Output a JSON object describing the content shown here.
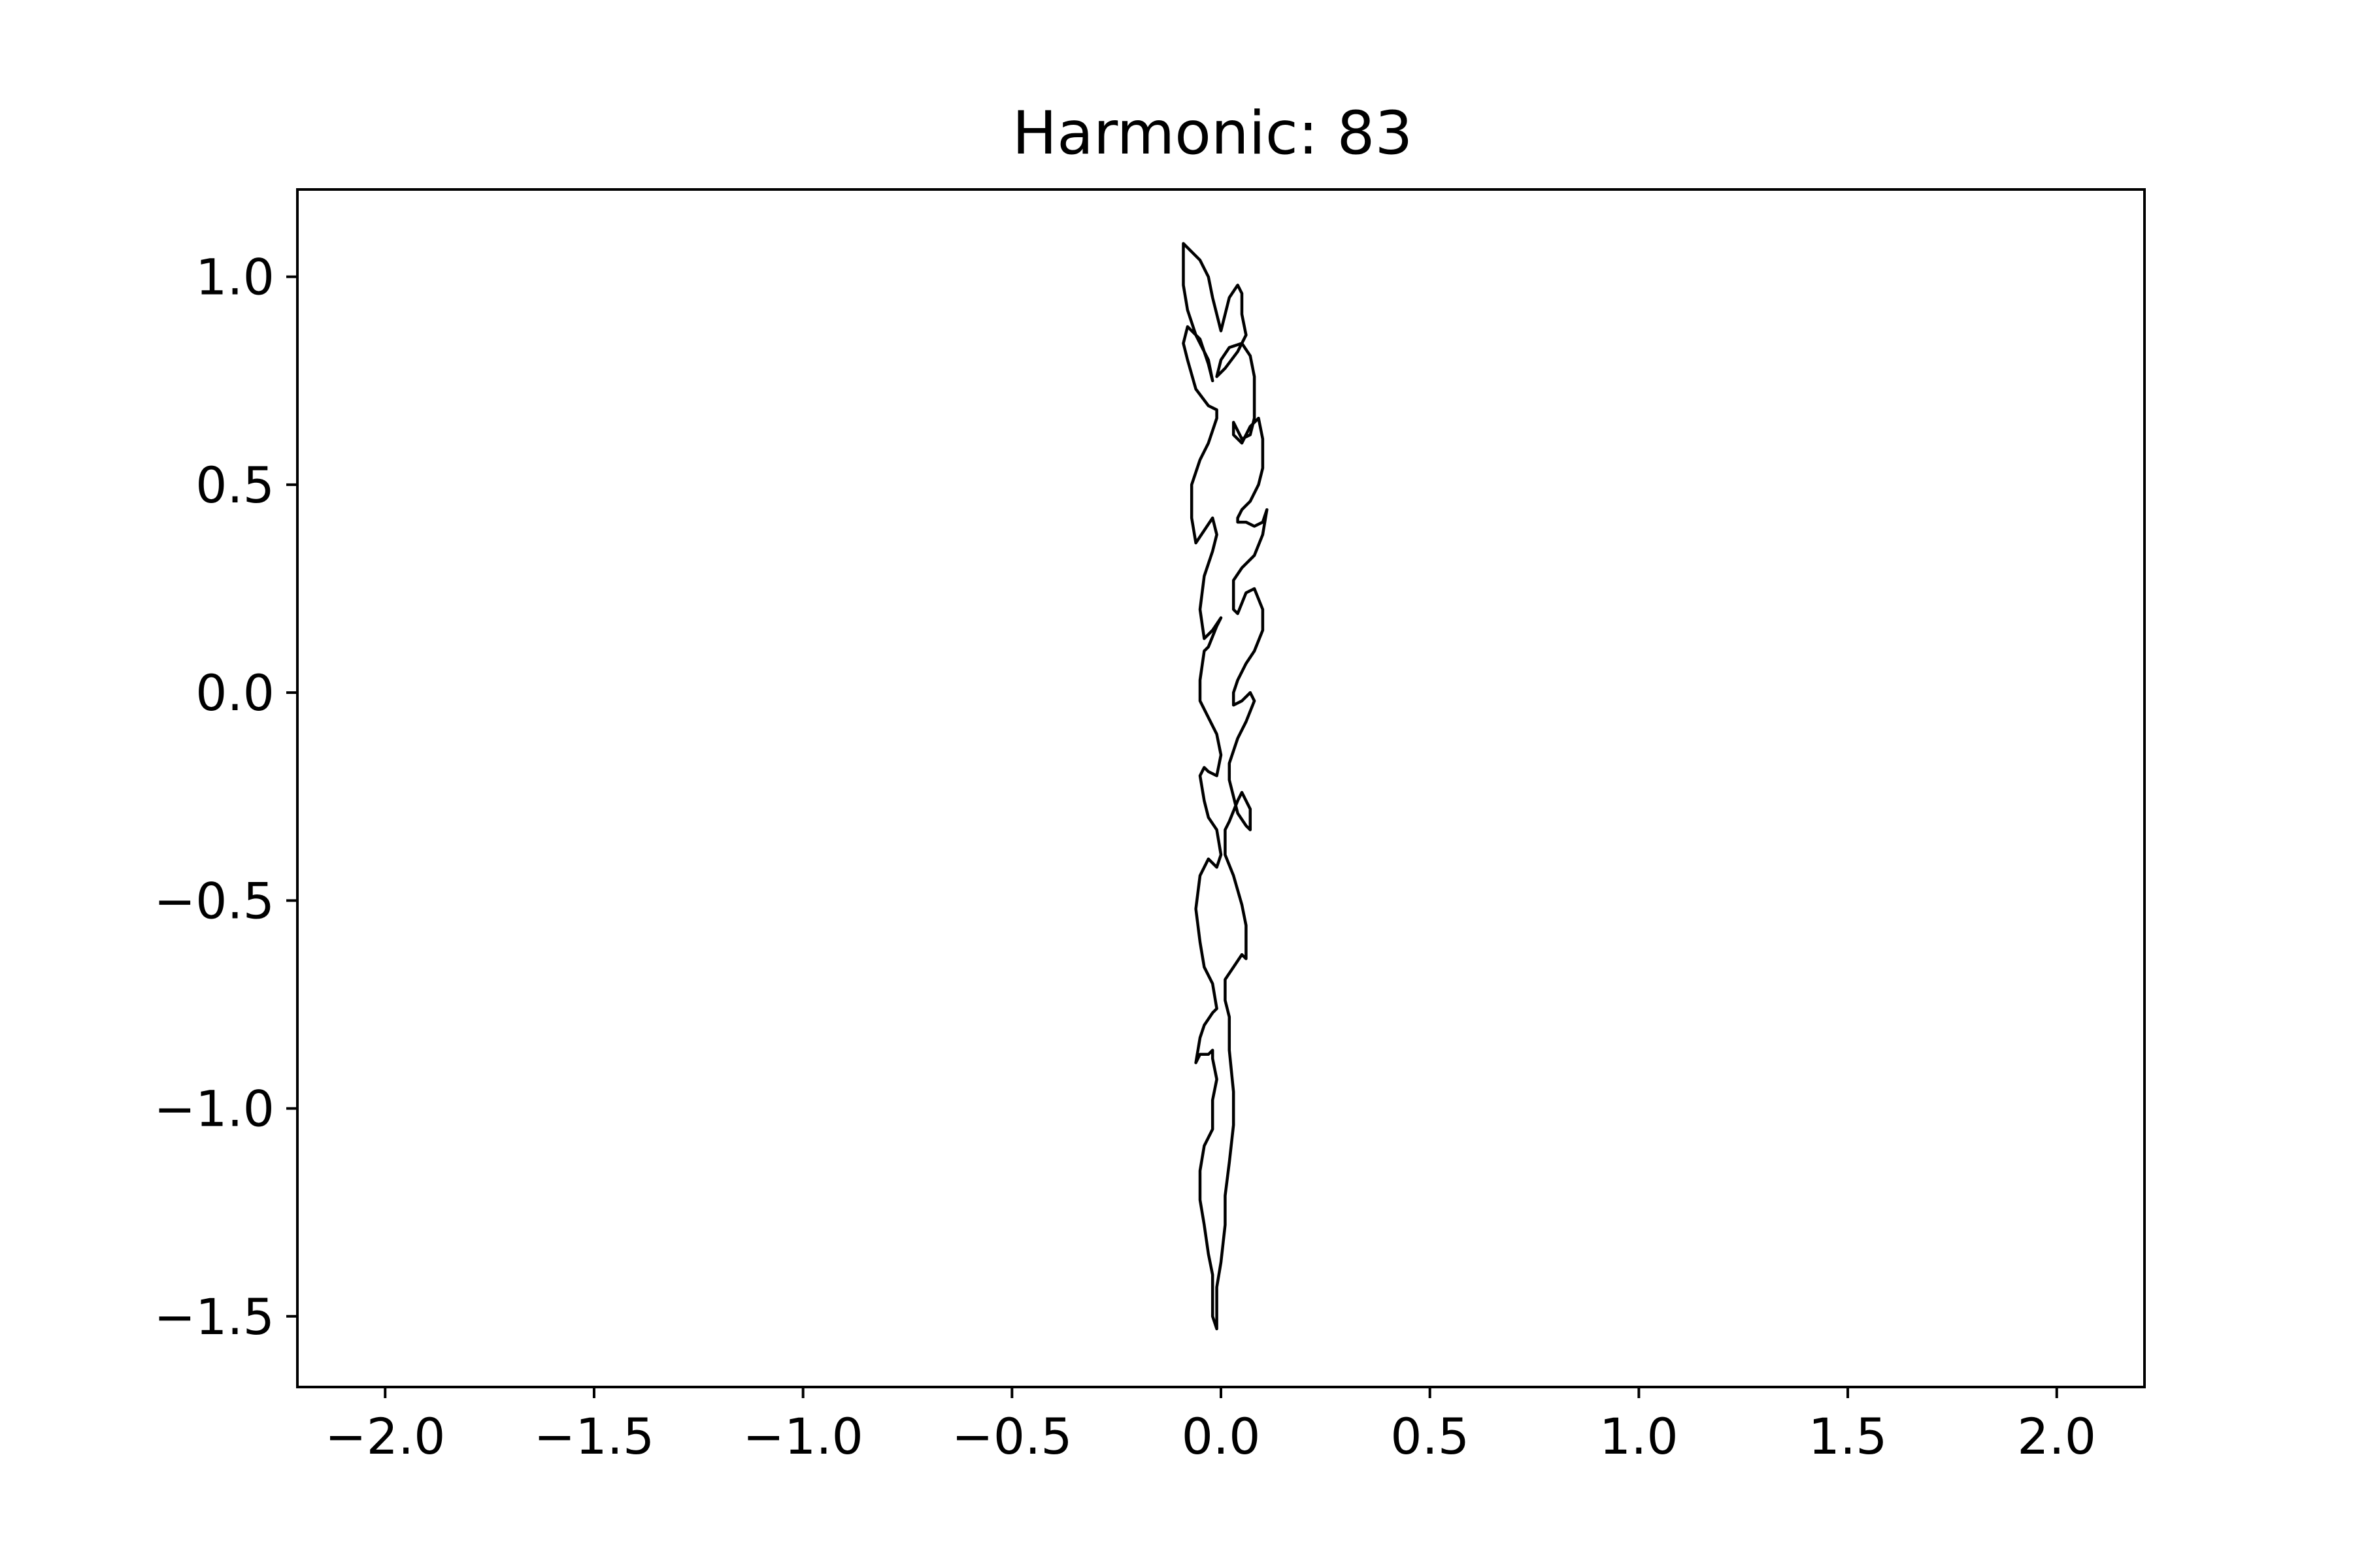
{
  "chart_data": {
    "type": "line",
    "title": "Harmonic: 83",
    "xlabel": "",
    "ylabel": "",
    "xlim": [
      -2.21,
      2.21
    ],
    "ylim": [
      -1.67,
      1.21
    ],
    "xticks": [
      -2.0,
      -1.5,
      -1.0,
      -0.5,
      0.0,
      0.5,
      1.0,
      1.5,
      2.0
    ],
    "yticks": [
      -1.5,
      -1.0,
      -0.5,
      0.0,
      0.5,
      1.0
    ],
    "xtick_labels": [
      "−2.0",
      "−1.5",
      "−1.0",
      "−0.5",
      "0.0",
      "0.5",
      "1.0",
      "1.5",
      "2.0"
    ],
    "ytick_labels": [
      "−1.5",
      "−1.0",
      "−0.5",
      "0.0",
      "0.5",
      "1.0"
    ],
    "grid": false,
    "legend": false,
    "line_color": "#000000",
    "series": [
      {
        "closed": true,
        "x": [
          -0.09,
          -0.08,
          -0.05,
          -0.03,
          -0.02,
          -0.01,
          0.0,
          0.02,
          0.04,
          0.05,
          0.05,
          0.06,
          0.04,
          0.01,
          -0.01,
          0.0,
          0.02,
          0.05,
          0.07,
          0.08,
          0.08,
          0.08,
          0.07,
          0.05,
          0.03,
          0.03,
          0.05,
          0.07,
          0.09,
          0.1,
          0.1,
          0.09,
          0.07,
          0.05,
          0.04,
          0.04,
          0.06,
          0.08,
          0.1,
          0.11,
          0.1,
          0.08,
          0.05,
          0.03,
          0.03,
          0.04,
          0.06,
          0.08,
          0.1,
          0.1,
          0.08,
          0.06,
          0.04,
          0.03,
          0.03,
          0.05,
          0.06,
          0.07,
          0.08,
          0.06,
          0.04,
          0.02,
          0.02,
          0.04,
          0.06,
          0.07,
          0.07,
          0.05,
          0.04,
          0.02,
          0.01,
          0.01,
          0.03,
          0.05,
          0.06,
          0.06,
          0.05,
          0.03,
          0.01,
          0.01,
          0.01,
          0.02,
          0.02,
          0.02,
          0.03,
          0.03,
          0.02,
          0.01,
          0.01,
          0.01,
          0.0,
          -0.01,
          -0.01,
          -0.01,
          -0.01,
          -0.02,
          -0.02,
          -0.02,
          -0.03,
          -0.04,
          -0.05,
          -0.05,
          -0.04,
          -0.02,
          -0.02,
          -0.01,
          -0.02,
          -0.02,
          -0.03,
          -0.05,
          -0.06,
          -0.05,
          -0.04,
          -0.02,
          -0.01,
          -0.02,
          -0.04,
          -0.05,
          -0.06,
          -0.05,
          -0.03,
          -0.01,
          0.0,
          -0.01,
          -0.03,
          -0.04,
          -0.05,
          -0.04,
          -0.03,
          -0.01,
          0.0,
          -0.01,
          -0.03,
          -0.05,
          -0.05,
          -0.04,
          -0.03,
          -0.01,
          0.0,
          -0.02,
          -0.04,
          -0.05,
          -0.04,
          -0.02,
          -0.01,
          -0.02,
          -0.04,
          -0.06,
          -0.07,
          -0.07,
          -0.05,
          -0.03,
          -0.01,
          -0.01,
          -0.03,
          -0.06,
          -0.08,
          -0.09,
          -0.08,
          -0.05,
          -0.03,
          -0.02,
          -0.03,
          -0.06,
          -0.08,
          -0.09,
          -0.09,
          -0.09
        ],
        "y": [
          1.08,
          1.07,
          1.04,
          1.0,
          0.95,
          0.91,
          0.87,
          0.95,
          0.98,
          0.96,
          0.91,
          0.86,
          0.82,
          0.78,
          0.76,
          0.8,
          0.83,
          0.84,
          0.81,
          0.76,
          0.71,
          0.66,
          0.62,
          0.61,
          0.65,
          0.62,
          0.6,
          0.64,
          0.66,
          0.61,
          0.54,
          0.5,
          0.46,
          0.44,
          0.42,
          0.41,
          0.41,
          0.4,
          0.41,
          0.44,
          0.38,
          0.33,
          0.3,
          0.27,
          0.2,
          0.19,
          0.24,
          0.25,
          0.2,
          0.15,
          0.1,
          0.07,
          0.03,
          0.0,
          -0.03,
          -0.02,
          -0.01,
          0.0,
          -0.02,
          -0.07,
          -0.11,
          -0.17,
          -0.21,
          -0.29,
          -0.32,
          -0.33,
          -0.28,
          -0.24,
          -0.26,
          -0.31,
          -0.33,
          -0.39,
          -0.44,
          -0.51,
          -0.56,
          -0.64,
          -0.63,
          -0.66,
          -0.69,
          -0.72,
          -0.74,
          -0.78,
          -0.81,
          -0.86,
          -0.96,
          -1.04,
          -1.13,
          -1.21,
          -1.24,
          -1.28,
          -1.37,
          -1.43,
          -1.48,
          -1.52,
          -1.53,
          -1.5,
          -1.46,
          -1.4,
          -1.35,
          -1.28,
          -1.22,
          -1.15,
          -1.09,
          -1.05,
          -0.98,
          -0.93,
          -0.88,
          -0.86,
          -0.87,
          -0.87,
          -0.89,
          -0.83,
          -0.8,
          -0.77,
          -0.76,
          -0.7,
          -0.66,
          -0.6,
          -0.52,
          -0.44,
          -0.4,
          -0.42,
          -0.39,
          -0.33,
          -0.3,
          -0.26,
          -0.2,
          -0.18,
          -0.19,
          -0.2,
          -0.15,
          -0.1,
          -0.06,
          -0.02,
          0.03,
          0.1,
          0.11,
          0.16,
          0.18,
          0.15,
          0.13,
          0.2,
          0.28,
          0.34,
          0.38,
          0.42,
          0.39,
          0.36,
          0.42,
          0.5,
          0.56,
          0.6,
          0.66,
          0.68,
          0.69,
          0.73,
          0.8,
          0.84,
          0.88,
          0.85,
          0.79,
          0.75,
          0.8,
          0.86,
          0.92,
          0.98,
          1.03,
          1.07
        ]
      }
    ]
  }
}
